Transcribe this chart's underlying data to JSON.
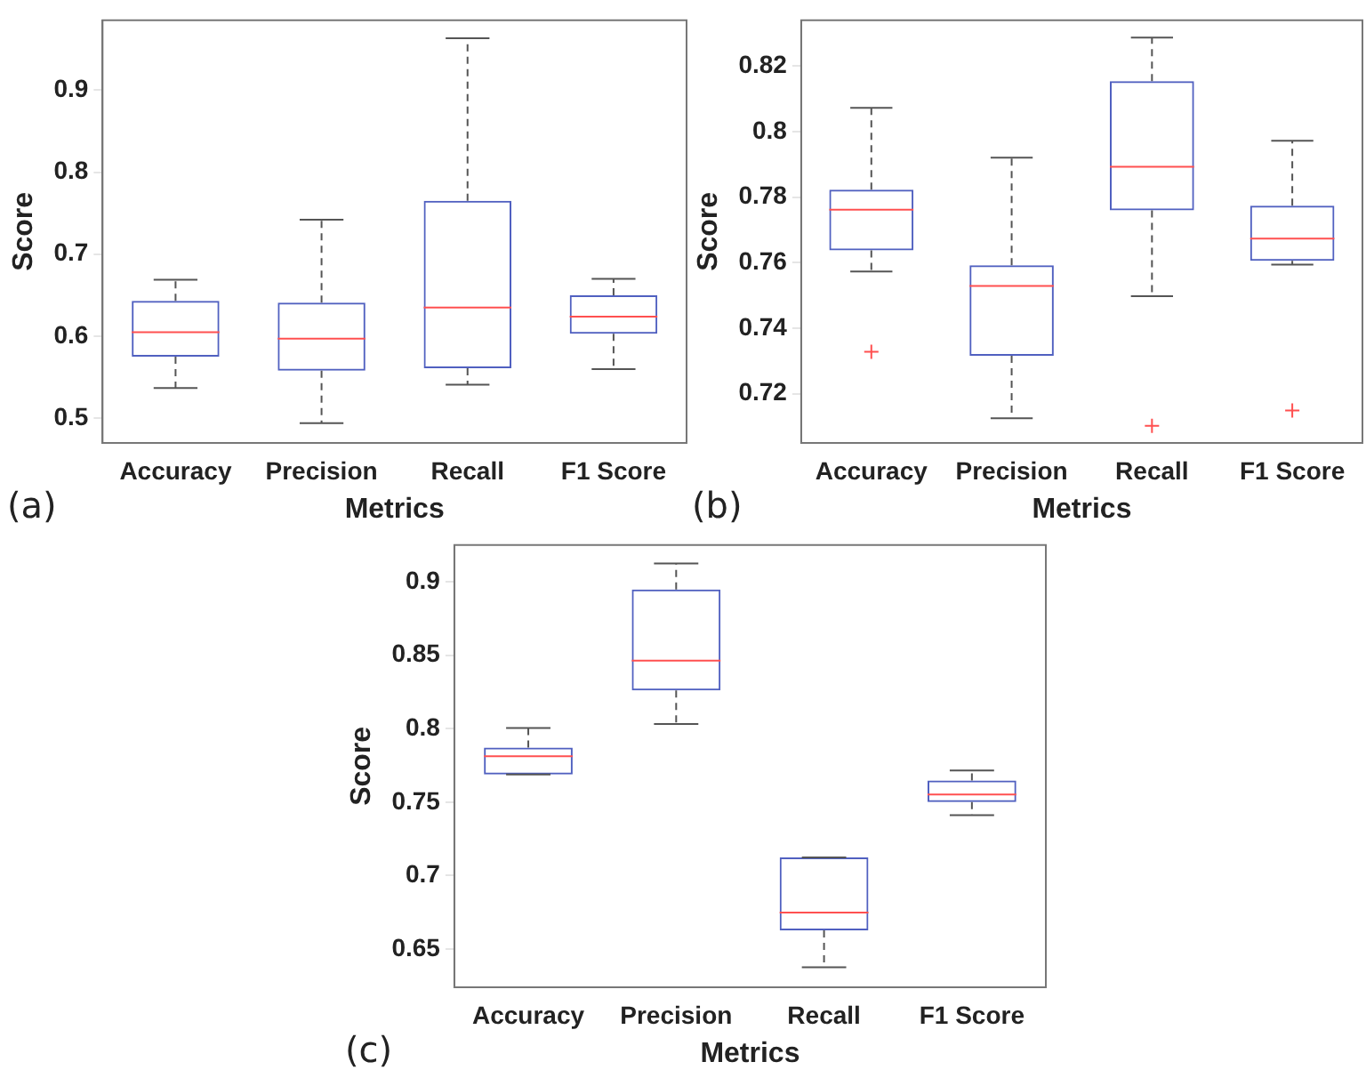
{
  "chart_data": [
    {
      "type": "box",
      "categories": [
        "Accuracy",
        "Precision",
        "Recall",
        "F1 Score"
      ],
      "xlabel": "Metrics",
      "ylabel": "Score",
      "annotations": [
        "(a)"
      ],
      "ylim": [
        0.47,
        0.985
      ],
      "yticks": [
        0.5,
        0.6,
        0.7,
        0.8,
        0.9
      ],
      "grid": false,
      "legend": false,
      "series": [
        {
          "color": "#5060c0",
          "boxes": [
            {
              "low": 0.537,
              "q1": 0.575,
              "median": 0.605,
              "q3": 0.643,
              "high": 0.669
            },
            {
              "low": 0.494,
              "q1": 0.558,
              "median": 0.597,
              "q3": 0.641,
              "high": 0.742
            },
            {
              "low": 0.541,
              "q1": 0.561,
              "median": 0.635,
              "q3": 0.765,
              "high": 0.963
            },
            {
              "low": 0.56,
              "q1": 0.603,
              "median": 0.624,
              "q3": 0.65,
              "high": 0.67
            }
          ]
        }
      ]
    },
    {
      "type": "box",
      "categories": [
        "Accuracy",
        "Precision",
        "Recall",
        "F1 Score"
      ],
      "xlabel": "Metrics",
      "ylabel": "Score",
      "annotations": [
        "(b)"
      ],
      "ylim": [
        0.705,
        0.834
      ],
      "yticks": [
        0.72,
        0.74,
        0.76,
        0.78,
        0.8,
        0.82
      ],
      "grid": false,
      "legend": false,
      "series": [
        {
          "color": "#5060c0",
          "boxes": [
            {
              "low": 0.7573,
              "q1": 0.7638,
              "median": 0.7762,
              "q3": 0.7823,
              "high": 0.8073,
              "outliers": [
                0.7328
              ]
            },
            {
              "low": 0.7125,
              "q1": 0.7316,
              "median": 0.7529,
              "q3": 0.7592,
              "high": 0.7921
            },
            {
              "low": 0.7498,
              "q1": 0.776,
              "median": 0.7893,
              "q3": 0.8154,
              "high": 0.8287,
              "outliers": [
                0.7102
              ]
            },
            {
              "low": 0.7594,
              "q1": 0.7606,
              "median": 0.7674,
              "q3": 0.7774,
              "high": 0.7972,
              "outliers": [
                0.7149
              ]
            }
          ]
        }
      ]
    },
    {
      "type": "box",
      "categories": [
        "Accuracy",
        "Precision",
        "Recall",
        "F1 Score"
      ],
      "xlabel": "Metrics",
      "ylabel": "Score",
      "annotations": [
        "(c)"
      ],
      "ylim": [
        0.624,
        0.925
      ],
      "yticks": [
        0.65,
        0.7,
        0.75,
        0.8,
        0.85,
        0.9
      ],
      "grid": false,
      "legend": false,
      "series": [
        {
          "color": "#5060c0",
          "boxes": [
            {
              "low": 0.7688,
              "q1": 0.7688,
              "median": 0.7812,
              "q3": 0.7872,
              "high": 0.8004
            },
            {
              "low": 0.8032,
              "q1": 0.826,
              "median": 0.8464,
              "q3": 0.8948,
              "high": 0.9124
            },
            {
              "low": 0.6376,
              "q1": 0.6628,
              "median": 0.6748,
              "q3": 0.7124,
              "high": 0.7124
            },
            {
              "low": 0.7412,
              "q1": 0.75,
              "median": 0.7552,
              "q3": 0.7648,
              "high": 0.7716
            }
          ]
        }
      ]
    }
  ]
}
